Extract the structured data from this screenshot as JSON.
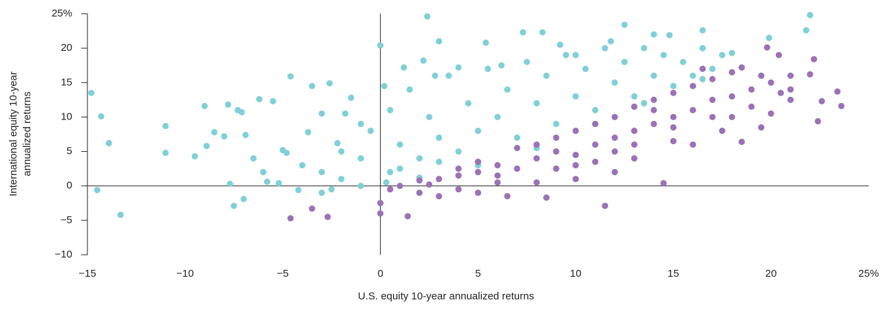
{
  "chart_data": {
    "type": "scatter",
    "xlabel": "U.S. equity 10-year annualized returns",
    "ylabel": [
      "International equity 10-year",
      "annualized returns"
    ],
    "xlim": [
      -15,
      25
    ],
    "ylim": [
      -10,
      25
    ],
    "xticks": [
      {
        "value": -15,
        "label": "−15"
      },
      {
        "value": -10,
        "label": "−10"
      },
      {
        "value": -5,
        "label": "−5"
      },
      0,
      5,
      10,
      15,
      20,
      {
        "value": 25,
        "label": "25%"
      }
    ],
    "yticks": [
      {
        "value": -10,
        "label": "−10"
      },
      {
        "value": -5,
        "label": "−5"
      },
      0,
      5,
      10,
      15,
      20,
      {
        "value": 25,
        "label": "25%"
      }
    ],
    "series": [
      {
        "color": "#80d0d6",
        "x": [
          -14.8,
          -14.5,
          -14.3,
          -13.9,
          -13.3,
          -11,
          -11,
          -9.5,
          -9,
          -8.9,
          -8.5,
          -8,
          -7.8,
          -7.7,
          -7.5,
          -7.3,
          -7.1,
          -7,
          -6.9,
          -6.5,
          -6.2,
          -5.8,
          -5.5,
          -5.2,
          -4.8,
          -4.6,
          -4.2,
          -3.5,
          -3.7,
          -3,
          -2.6,
          -2.2,
          -1.5,
          -1,
          0,
          2.4,
          3,
          2.2,
          4,
          5.4,
          7.3,
          8.3,
          10,
          12.5,
          14.8,
          16.5,
          18,
          19.9,
          21.8,
          22,
          -4,
          -3,
          -2,
          -1,
          -0.5,
          0.5,
          0.5,
          1,
          1.5,
          2,
          2.5,
          3,
          3.5,
          4,
          4.5,
          5,
          5.5,
          6,
          6.5,
          7,
          7.5,
          8,
          8.5,
          9,
          9.5,
          10,
          10.5,
          11,
          11.5,
          12,
          12.5,
          13,
          13.5,
          14,
          14.5,
          15,
          15.5,
          16,
          16.5,
          17,
          -2,
          -1,
          0.3,
          1,
          3,
          -3,
          -6,
          -5,
          -2.5,
          -1.8,
          0.2,
          1.2,
          2.8,
          6.2,
          9.2,
          11.8,
          14,
          17.5,
          8,
          11,
          13.5,
          16.5,
          5,
          2
        ],
        "y": [
          13.5,
          -0.6,
          10.1,
          6.2,
          -4.2,
          8.7,
          4.8,
          4.3,
          11.6,
          5.8,
          7.8,
          7.2,
          11.8,
          0.3,
          -2.9,
          11,
          10.7,
          -1.9,
          7.4,
          4,
          12.6,
          0.6,
          12.3,
          0.4,
          4.8,
          15.9,
          -0.6,
          14.5,
          7.8,
          10.5,
          14.9,
          6.2,
          12.8,
          9,
          20.4,
          24.6,
          21,
          18.2,
          17.2,
          20.8,
          22.3,
          22.3,
          19,
          23.4,
          21.9,
          22.6,
          19.3,
          21.5,
          22.6,
          24.8,
          3,
          2,
          5,
          4,
          8,
          2,
          11,
          6,
          14,
          4,
          10,
          7,
          16,
          5,
          12,
          8,
          17,
          10,
          14,
          7,
          18,
          12,
          16,
          9,
          19,
          13,
          17,
          11,
          20,
          15,
          18,
          13,
          20,
          16,
          19,
          14.5,
          18,
          16,
          20,
          17,
          1,
          0,
          0.5,
          2.5,
          3.5,
          -1,
          2,
          5.2,
          -0.5,
          10.5,
          14.5,
          17.2,
          16,
          17.5,
          20.5,
          21,
          22,
          19,
          5.5,
          9,
          12,
          15.5,
          3,
          1.2
        ]
      },
      {
        "color": "#9b72b4",
        "x": [
          0,
          0,
          0.5,
          1,
          1.4,
          -4.6,
          -3.5,
          -2.7,
          2,
          3,
          4,
          5,
          6.5,
          8.5,
          11.5,
          14.5,
          19.8,
          20.4,
          22.2,
          23.4,
          23.6,
          22.4,
          22.6,
          21,
          20,
          19.5,
          18.5,
          17.5,
          16,
          15,
          13,
          12,
          10,
          8,
          6,
          4,
          2,
          3,
          5,
          6,
          7,
          8,
          9,
          10,
          11,
          12,
          13,
          14,
          15,
          16,
          17,
          18,
          19,
          20,
          21,
          22,
          9,
          10,
          11,
          12,
          13,
          14,
          15,
          16,
          17,
          18,
          7,
          8,
          5,
          4,
          2.5,
          6,
          9,
          11,
          13,
          15,
          17,
          19,
          21,
          16.5,
          18.5,
          14,
          12,
          10,
          18,
          19.5,
          20.5
        ],
        "y": [
          -2.5,
          -4,
          -0.5,
          0,
          -4.4,
          -4.7,
          -3.3,
          -4.5,
          -1,
          -1.5,
          -0.5,
          -1,
          -1.5,
          -1.7,
          -2.9,
          0.4,
          20.1,
          19,
          18.4,
          13.7,
          11.6,
          9.4,
          12.3,
          12.5,
          10.5,
          8.5,
          6.4,
          8,
          6,
          6.5,
          4,
          2,
          1,
          0.5,
          0.5,
          1.5,
          0.8,
          1,
          2,
          3,
          2.5,
          4,
          5,
          4.5,
          6,
          7,
          8,
          9,
          10,
          11,
          12.5,
          13,
          14,
          15,
          16,
          16.2,
          7,
          8,
          9,
          10,
          11.5,
          12.5,
          13.5,
          14.5,
          15.5,
          16.5,
          5.5,
          6,
          3.5,
          2.5,
          0.2,
          1.5,
          2.5,
          3.5,
          6,
          8.5,
          10,
          11.5,
          14,
          17,
          17.2,
          11,
          5,
          3,
          10,
          16,
          13.5
        ]
      }
    ]
  }
}
